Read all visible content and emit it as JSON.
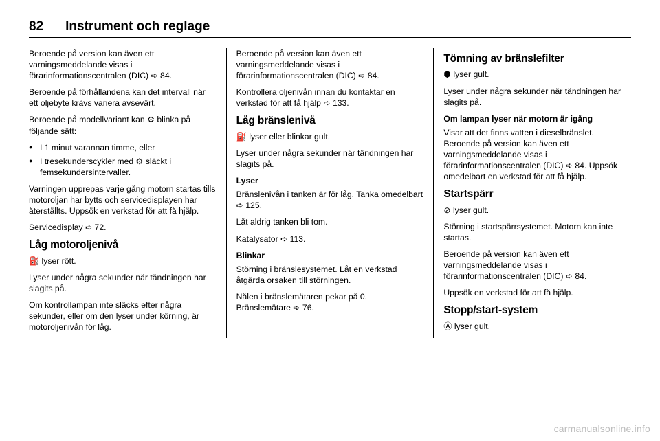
{
  "header": {
    "page_number": "82",
    "title": "Instrument och reglage"
  },
  "col1": {
    "p1": "Beroende på version kan även ett varningsmeddelande visas i förarinformationscentralen (DIC) ➪ 84.",
    "p2": "Beroende på förhållandena kan det intervall när ett oljebyte krävs variera avsevärt.",
    "p3": "Beroende på modellvariant kan ⚙ blinka på följande sätt:",
    "li1": "I 1 minut varannan timme, eller",
    "li2": "I tresekunderscykler med ⚙ släckt i femsekundersintervaller.",
    "p4": "Varningen upprepas varje gång motorn startas tills motoroljan har bytts och servicedisplayen har återställts. Uppsök en verkstad för att få hjälp.",
    "p5": "Servicedisplay ➪ 72.",
    "h1": "Låg motoroljenivå",
    "p6": "⛽ lyser rött.",
    "p7": "Lyser under några sekunder när tändningen har slagits på.",
    "p8": "Om kontrollampan inte släcks efter några sekunder, eller om den lyser under körning, är motoroljenivån för låg."
  },
  "col2": {
    "p1": "Beroende på version kan även ett varningsmeddelande visas i förarinformationscentralen (DIC) ➪ 84.",
    "p2": "Kontrollera oljenivån innan du kontaktar en verkstad för att få hjälp ➪ 133.",
    "h1": "Låg bränslenivå",
    "p3": "⛽ lyser eller blinkar gult.",
    "p4": "Lyser under några sekunder när tändningen har slagits på.",
    "sub1": "Lyser",
    "p5": "Bränslenivån i tanken är för låg. Tanka omedelbart ➪ 125.",
    "p6": "Låt aldrig tanken bli tom.",
    "p7": "Katalysator ➪ 113.",
    "sub2": "Blinkar",
    "p8": "Störning i bränslesystemet. Låt en verkstad åtgärda orsaken till störningen.",
    "p9": "Nålen i bränslemätaren pekar på 0. Bränslemätare ➪ 76."
  },
  "col3": {
    "h1": "Tömning av bränslefilter",
    "p1": "⬢ lyser gult.",
    "p2": "Lyser under några sekunder när tändningen har slagits på.",
    "sub1": "Om lampan lyser när motorn är igång",
    "p3": "Visar att det finns vatten i dieselbränslet. Beroende på version kan även ett varningsmeddelande visas i förarinformationscentralen (DIC) ➪ 84. Uppsök omedelbart en verkstad för att få hjälp.",
    "h2": "Startspärr",
    "p4": "⊘ lyser gult.",
    "p5": "Störning i startspärrsystemet. Motorn kan inte startas.",
    "p6": "Beroende på version kan även ett varningsmeddelande visas i förarinformationscentralen (DIC) ➪ 84.",
    "p7": "Uppsök en verkstad för att få hjälp.",
    "h3": "Stopp/start-system",
    "p8": "Ⓐ lyser gult."
  },
  "watermark": "carmanualsonline.info"
}
